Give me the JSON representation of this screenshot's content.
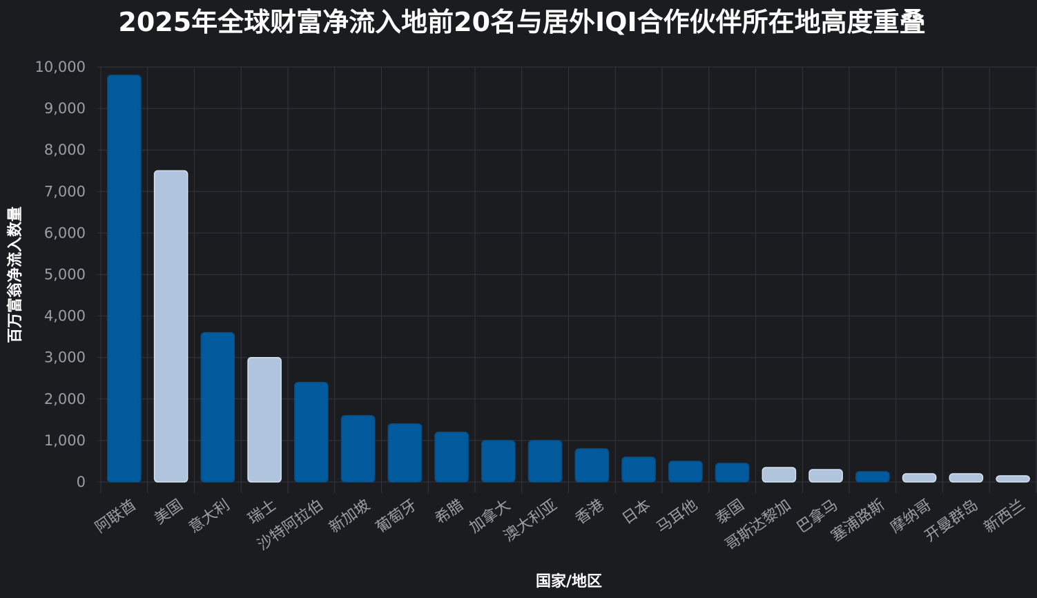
{
  "chart_data": {
    "type": "bar",
    "title": "2025年全球财富净流入地前20名与居外IQI合作伙伴所在地高度重叠",
    "xlabel": "国家/地区",
    "ylabel": "百万富翁净流入数量",
    "ylim": [
      0,
      10000
    ],
    "yticks": [
      0,
      1000,
      2000,
      3000,
      4000,
      5000,
      6000,
      7000,
      8000,
      9000,
      10000
    ],
    "ytick_labels": [
      "0",
      "1,000",
      "2,000",
      "3,000",
      "4,000",
      "5,000",
      "6,000",
      "7,000",
      "8,000",
      "9,000",
      "10,000"
    ],
    "grid": true,
    "categories": [
      "阿联酋",
      "美国",
      "意大利",
      "瑞士",
      "沙特阿拉伯",
      "新加坡",
      "葡萄牙",
      "希腊",
      "加拿大",
      "澳大利亚",
      "香港",
      "日本",
      "马耳他",
      "泰国",
      "哥斯达黎加",
      "巴拿马",
      "塞浦路斯",
      "摩纳哥",
      "开曼群岛",
      "新西兰"
    ],
    "values": [
      9800,
      7500,
      3600,
      3000,
      2400,
      1600,
      1400,
      1200,
      1000,
      1000,
      800,
      600,
      500,
      450,
      350,
      300,
      250,
      200,
      200,
      150
    ],
    "bar_colors": [
      "#005a9c",
      "#b0c4de",
      "#005a9c",
      "#b0c4de",
      "#005a9c",
      "#005a9c",
      "#005a9c",
      "#005a9c",
      "#005a9c",
      "#005a9c",
      "#005a9c",
      "#005a9c",
      "#005a9c",
      "#005a9c",
      "#b0c4de",
      "#b0c4de",
      "#005a9c",
      "#b0c4de",
      "#b0c4de",
      "#b0c4de"
    ],
    "colors": {
      "background": "#1b1c20",
      "grid": "#34363c",
      "tick_text": "#9c9ea3",
      "title_text": "#ffffff"
    }
  }
}
